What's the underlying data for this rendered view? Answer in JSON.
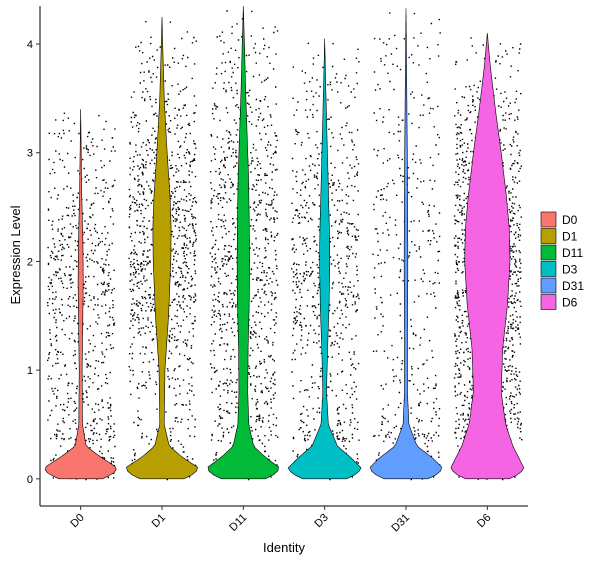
{
  "chart_data": {
    "type": "violin",
    "title": "",
    "xlabel": "Identity",
    "ylabel": "Expression Level",
    "ylim": [
      -0.25,
      4.35
    ],
    "yticks": [
      0,
      1,
      2,
      3,
      4
    ],
    "grid": false,
    "legend": "right",
    "categories": [
      "D0",
      "D1",
      "D11",
      "D3",
      "D31",
      "D6"
    ],
    "series": [
      {
        "name": "D0",
        "color": "#F8766D",
        "max": 3.4,
        "mode": 0.1,
        "cells": 1800,
        "density": [
          [
            0,
            0.6
          ],
          [
            0.05,
            0.9
          ],
          [
            0.1,
            1.0
          ],
          [
            0.2,
            0.55
          ],
          [
            0.3,
            0.15
          ],
          [
            0.5,
            0.05
          ],
          [
            1.0,
            0.04
          ],
          [
            1.5,
            0.06
          ],
          [
            1.8,
            0.07
          ],
          [
            2.2,
            0.06
          ],
          [
            2.6,
            0.03
          ],
          [
            3.0,
            0.015
          ],
          [
            3.4,
            0.0
          ]
        ]
      },
      {
        "name": "D1",
        "color": "#B79F00",
        "max": 4.25,
        "mode": 0.1,
        "cells": 9000,
        "density": [
          [
            0,
            0.6
          ],
          [
            0.05,
            0.9
          ],
          [
            0.1,
            1.0
          ],
          [
            0.2,
            0.55
          ],
          [
            0.3,
            0.2
          ],
          [
            0.5,
            0.06
          ],
          [
            1.0,
            0.08
          ],
          [
            1.5,
            0.18
          ],
          [
            2.0,
            0.24
          ],
          [
            2.3,
            0.25
          ],
          [
            2.6,
            0.22
          ],
          [
            3.0,
            0.14
          ],
          [
            3.5,
            0.06
          ],
          [
            4.0,
            0.02
          ],
          [
            4.25,
            0.0
          ]
        ]
      },
      {
        "name": "D11",
        "color": "#00BA38",
        "max": 4.35,
        "mode": 0.1,
        "cells": 9000,
        "density": [
          [
            0,
            0.6
          ],
          [
            0.05,
            0.9
          ],
          [
            0.1,
            1.0
          ],
          [
            0.2,
            0.6
          ],
          [
            0.3,
            0.28
          ],
          [
            0.5,
            0.15
          ],
          [
            0.8,
            0.12
          ],
          [
            1.2,
            0.13
          ],
          [
            1.6,
            0.16
          ],
          [
            2.0,
            0.17
          ],
          [
            2.4,
            0.16
          ],
          [
            2.8,
            0.14
          ],
          [
            3.2,
            0.1
          ],
          [
            3.6,
            0.06
          ],
          [
            4.0,
            0.03
          ],
          [
            4.35,
            0.0
          ]
        ]
      },
      {
        "name": "D3",
        "color": "#00BFC4",
        "max": 4.05,
        "mode": 0.1,
        "cells": 6500,
        "density": [
          [
            0,
            0.6
          ],
          [
            0.05,
            0.9
          ],
          [
            0.1,
            1.0
          ],
          [
            0.2,
            0.7
          ],
          [
            0.3,
            0.35
          ],
          [
            0.5,
            0.1
          ],
          [
            0.8,
            0.05
          ],
          [
            1.2,
            0.08
          ],
          [
            1.6,
            0.12
          ],
          [
            2.0,
            0.14
          ],
          [
            2.3,
            0.13
          ],
          [
            2.8,
            0.09
          ],
          [
            3.2,
            0.06
          ],
          [
            3.6,
            0.03
          ],
          [
            4.05,
            0.0
          ]
        ]
      },
      {
        "name": "D31",
        "color": "#619CFF",
        "max": 4.33,
        "mode": 0.1,
        "cells": 9000,
        "density": [
          [
            0,
            0.6
          ],
          [
            0.05,
            0.9
          ],
          [
            0.1,
            1.0
          ],
          [
            0.2,
            0.7
          ],
          [
            0.3,
            0.3
          ],
          [
            0.5,
            0.08
          ],
          [
            0.8,
            0.04
          ],
          [
            1.2,
            0.04
          ],
          [
            1.6,
            0.045
          ],
          [
            2.0,
            0.05
          ],
          [
            2.4,
            0.045
          ],
          [
            2.8,
            0.04
          ],
          [
            3.2,
            0.03
          ],
          [
            3.6,
            0.02
          ],
          [
            4.0,
            0.01
          ],
          [
            4.33,
            0.0
          ]
        ]
      },
      {
        "name": "D6",
        "color": "#F564E3",
        "max": 4.1,
        "mode": 0.1,
        "cells": 2600,
        "density": [
          [
            0,
            0.6
          ],
          [
            0.05,
            0.9
          ],
          [
            0.1,
            1.0
          ],
          [
            0.2,
            0.85
          ],
          [
            0.3,
            0.7
          ],
          [
            0.5,
            0.5
          ],
          [
            0.8,
            0.38
          ],
          [
            1.2,
            0.42
          ],
          [
            1.6,
            0.55
          ],
          [
            2.0,
            0.62
          ],
          [
            2.3,
            0.6
          ],
          [
            2.6,
            0.52
          ],
          [
            3.0,
            0.38
          ],
          [
            3.4,
            0.22
          ],
          [
            3.8,
            0.08
          ],
          [
            4.1,
            0.0
          ]
        ]
      }
    ]
  }
}
